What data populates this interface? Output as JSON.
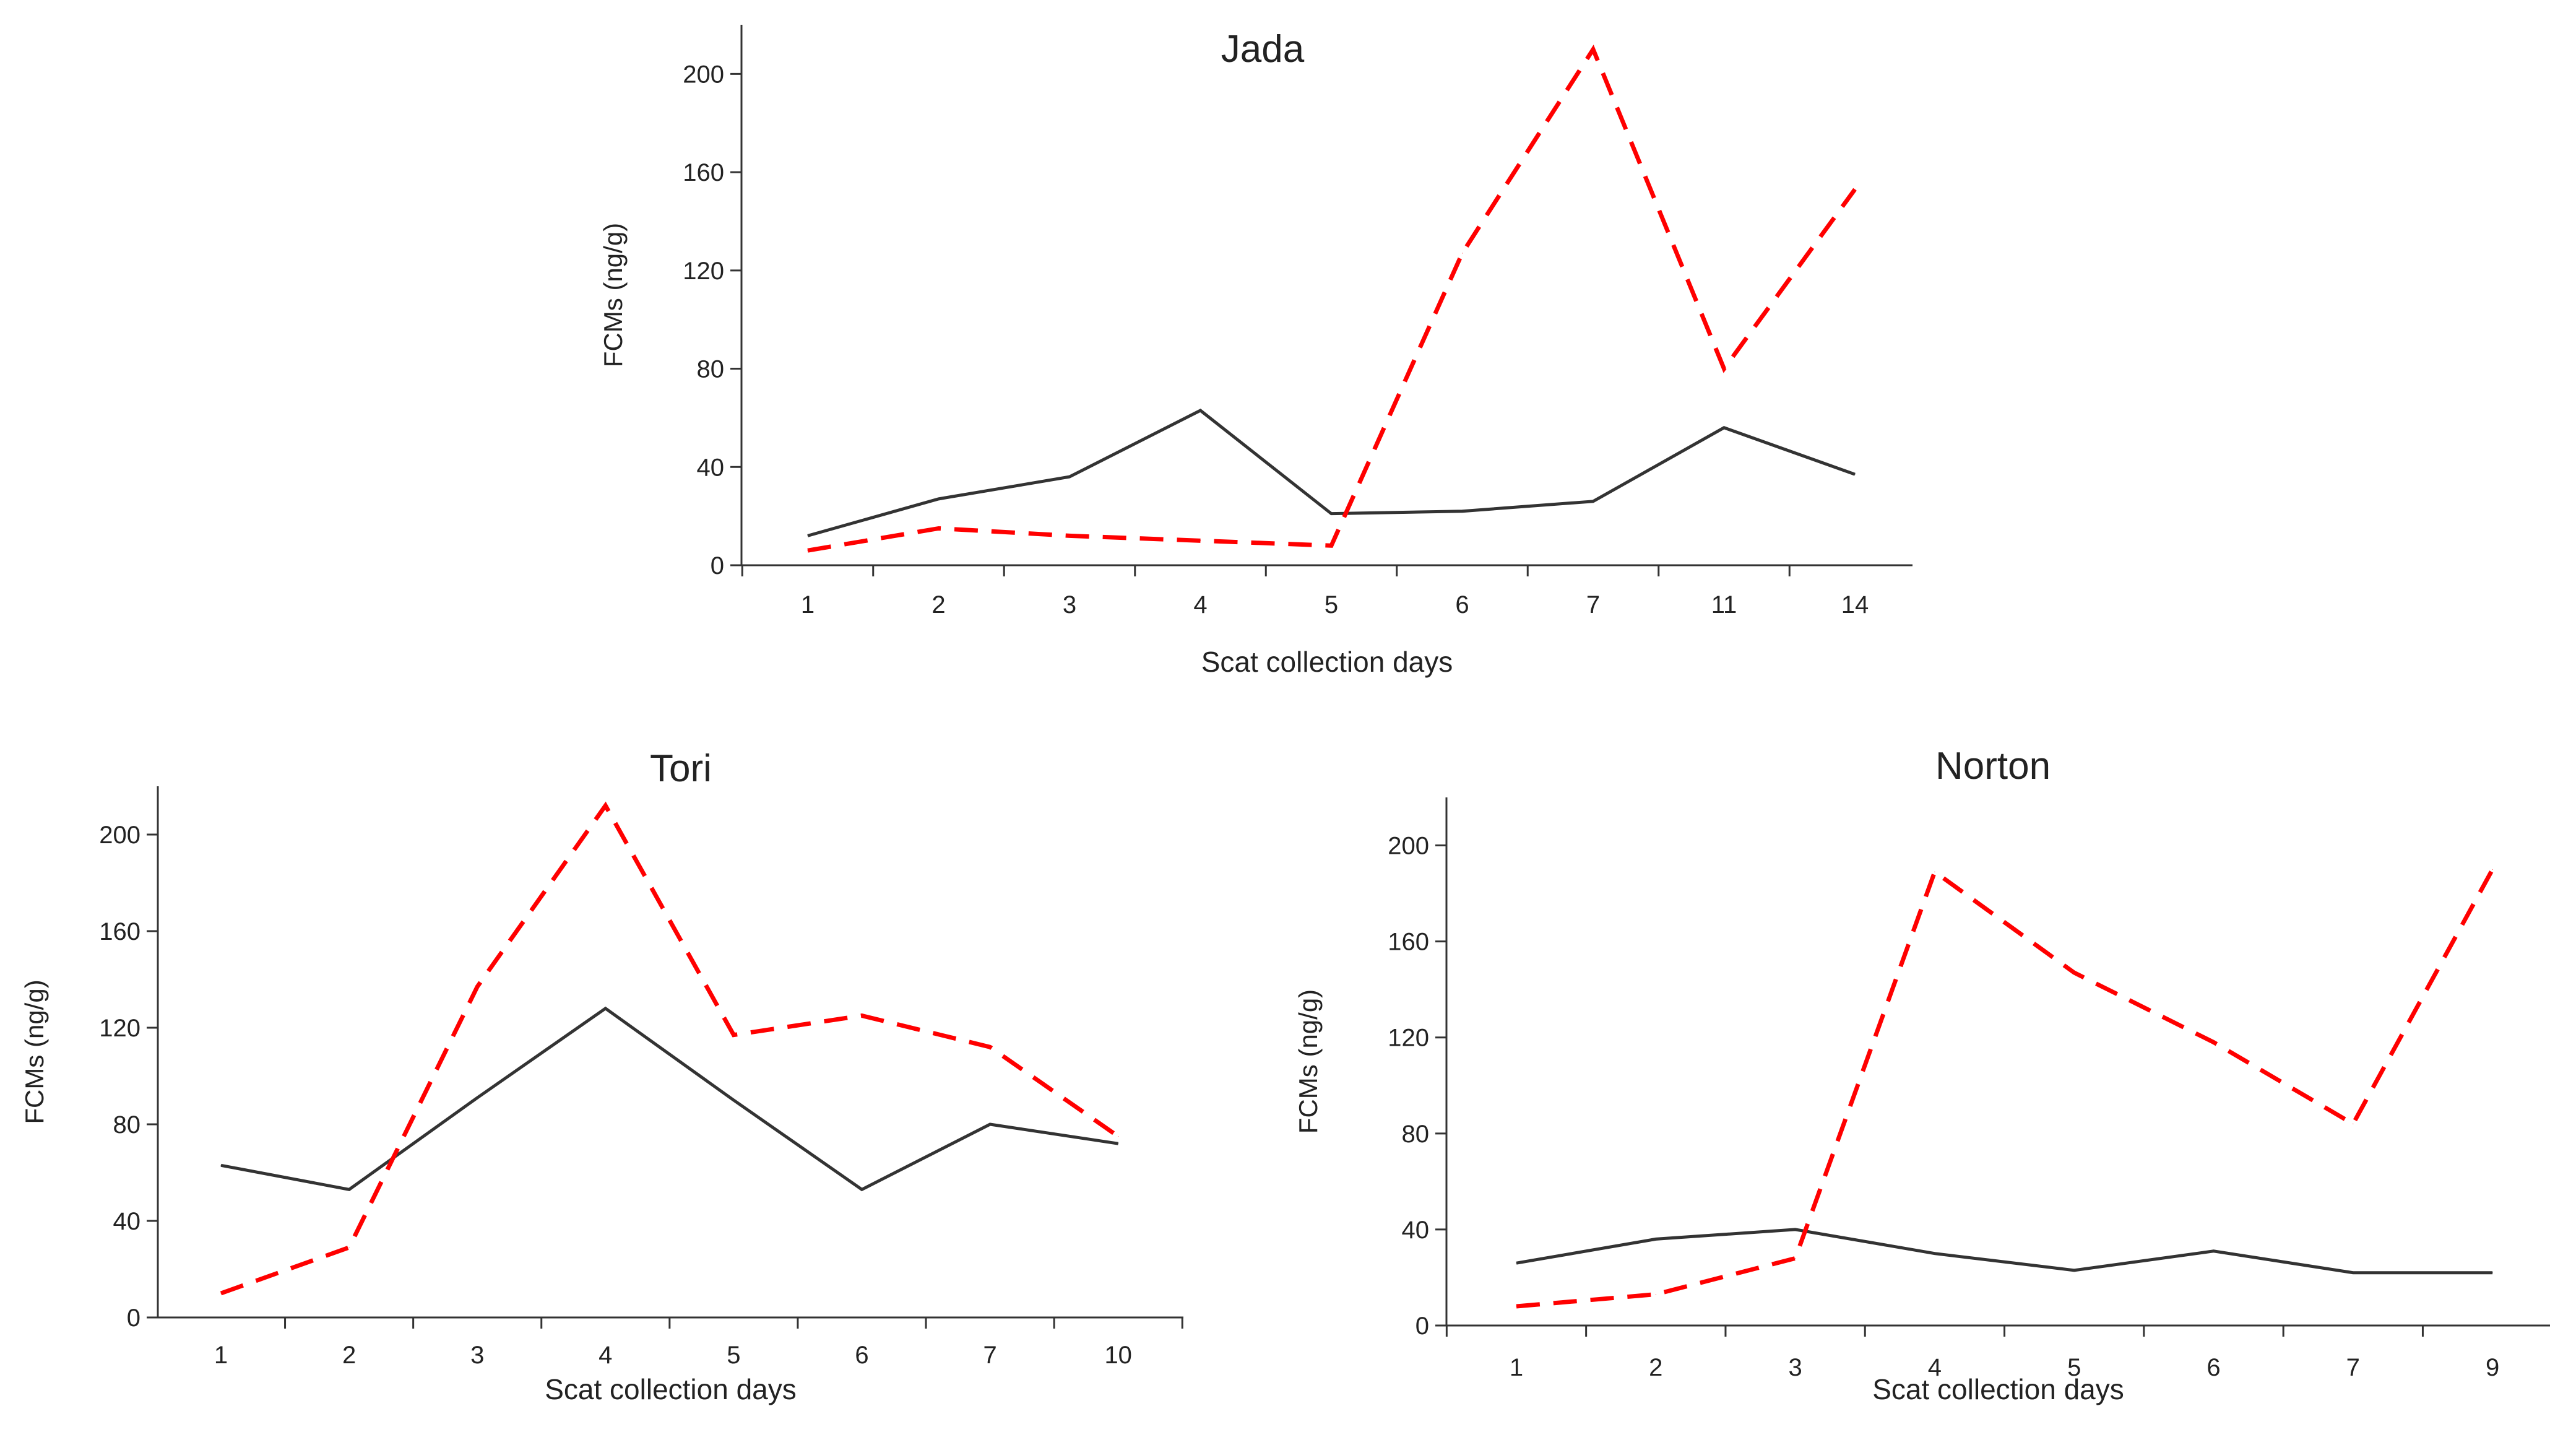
{
  "chart_data": [
    {
      "type": "line",
      "title": "Jada",
      "xlabel": "Scat collection days",
      "ylabel": "FCMs (ng/g)",
      "categories": [
        "1",
        "2",
        "3",
        "4",
        "5",
        "6",
        "7",
        "11",
        "14"
      ],
      "ylim": [
        0,
        220
      ],
      "yticks": [
        0,
        40,
        80,
        120,
        160,
        200
      ],
      "series": [
        {
          "name": "solid",
          "color": "#333333",
          "dash": false,
          "values": [
            12,
            27,
            36,
            63,
            21,
            22,
            26,
            56,
            37
          ]
        },
        {
          "name": "dashed",
          "color": "#ff0000",
          "dash": true,
          "values": [
            6,
            15,
            12,
            10,
            8,
            127,
            210,
            80,
            153
          ]
        }
      ]
    },
    {
      "type": "line",
      "title": "Tori",
      "xlabel": "Scat collection days",
      "ylabel": "FCMs (ng/g)",
      "categories": [
        "1",
        "2",
        "3",
        "4",
        "5",
        "6",
        "7",
        "10"
      ],
      "ylim": [
        0,
        220
      ],
      "yticks": [
        0,
        40,
        80,
        120,
        160,
        200
      ],
      "series": [
        {
          "name": "solid",
          "color": "#333333",
          "dash": false,
          "values": [
            63,
            53,
            91,
            128,
            90,
            53,
            80,
            72
          ]
        },
        {
          "name": "dashed",
          "color": "#ff0000",
          "dash": true,
          "values": [
            10,
            29,
            137,
            212,
            117,
            125,
            112,
            75
          ]
        }
      ]
    },
    {
      "type": "line",
      "title": "Norton",
      "xlabel": "Scat collection days",
      "ylabel": "FCMs (ng/g)",
      "categories": [
        "1",
        "2",
        "3",
        "4",
        "5",
        "6",
        "7",
        "9"
      ],
      "ylim": [
        0,
        220
      ],
      "yticks": [
        0,
        40,
        80,
        120,
        160,
        200
      ],
      "series": [
        {
          "name": "solid",
          "color": "#333333",
          "dash": false,
          "values": [
            26,
            36,
            40,
            30,
            23,
            31,
            22,
            22
          ]
        },
        {
          "name": "dashed",
          "color": "#ff0000",
          "dash": true,
          "values": [
            8,
            13,
            28,
            189,
            147,
            118,
            84,
            190
          ]
        }
      ]
    }
  ]
}
